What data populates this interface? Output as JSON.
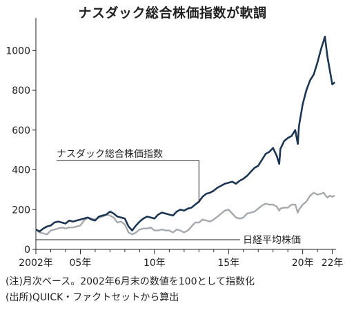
{
  "chart_data": {
    "type": "line",
    "title": "ナスダック総合株価指数が軟調",
    "xlabel": "",
    "ylabel": "",
    "xlim": [
      2002.5,
      2022.75
    ],
    "ylim": [
      0,
      1150
    ],
    "y_ticks": [
      0,
      200,
      400,
      600,
      800,
      1000
    ],
    "x_tick_labels": [
      {
        "year": 2002,
        "label": "2002年"
      },
      {
        "year": 2005,
        "label": "05年"
      },
      {
        "year": 2010,
        "label": "10年"
      },
      {
        "year": 2015,
        "label": "15年"
      },
      {
        "year": 2020,
        "label": "20年"
      },
      {
        "year": 2022,
        "label": "22年"
      }
    ],
    "grid": false,
    "series": [
      {
        "name": "ナスダック総合株価指数",
        "color": "#1c3552",
        "x": [
          2002.5,
          2002.75,
          2003.0,
          2003.25,
          2003.5,
          2003.75,
          2004.0,
          2004.25,
          2004.5,
          2004.75,
          2005.0,
          2005.25,
          2005.5,
          2005.75,
          2006.0,
          2006.25,
          2006.5,
          2006.75,
          2007.0,
          2007.25,
          2007.5,
          2007.75,
          2008.0,
          2008.25,
          2008.5,
          2008.75,
          2009.0,
          2009.25,
          2009.5,
          2009.75,
          2010.0,
          2010.25,
          2010.5,
          2010.75,
          2011.0,
          2011.25,
          2011.5,
          2011.75,
          2012.0,
          2012.25,
          2012.5,
          2012.75,
          2013.0,
          2013.25,
          2013.5,
          2013.75,
          2014.0,
          2014.25,
          2014.5,
          2014.75,
          2015.0,
          2015.25,
          2015.5,
          2015.75,
          2016.0,
          2016.25,
          2016.5,
          2016.75,
          2017.0,
          2017.25,
          2017.5,
          2017.75,
          2018.0,
          2018.25,
          2018.5,
          2018.75,
          2018.92,
          2019.0,
          2019.25,
          2019.5,
          2019.75,
          2020.0,
          2020.17,
          2020.25,
          2020.5,
          2020.75,
          2021.0,
          2021.25,
          2021.5,
          2021.75,
          2021.92,
          2022.0,
          2022.17,
          2022.33,
          2022.5,
          2022.67
        ],
        "values": [
          100,
          90,
          105,
          115,
          120,
          135,
          140,
          135,
          130,
          145,
          140,
          145,
          150,
          155,
          160,
          150,
          145,
          165,
          170,
          175,
          190,
          180,
          165,
          160,
          155,
          115,
          95,
          120,
          140,
          155,
          165,
          160,
          155,
          175,
          185,
          180,
          175,
          170,
          190,
          200,
          195,
          205,
          210,
          225,
          240,
          265,
          280,
          285,
          295,
          310,
          320,
          330,
          335,
          340,
          330,
          345,
          355,
          370,
          390,
          410,
          420,
          450,
          480,
          490,
          510,
          470,
          430,
          505,
          545,
          560,
          570,
          600,
          530,
          620,
          730,
          800,
          850,
          880,
          940,
          1010,
          1050,
          1070,
          970,
          900,
          830,
          840
        ]
      },
      {
        "name": "日経平均株価",
        "color": "#a5a9ad",
        "x": [
          2002.5,
          2002.75,
          2003.0,
          2003.25,
          2003.5,
          2003.75,
          2004.0,
          2004.25,
          2004.5,
          2004.75,
          2005.0,
          2005.25,
          2005.5,
          2005.75,
          2006.0,
          2006.25,
          2006.5,
          2006.75,
          2007.0,
          2007.25,
          2007.5,
          2007.75,
          2008.0,
          2008.25,
          2008.5,
          2008.75,
          2009.0,
          2009.25,
          2009.5,
          2009.75,
          2010.0,
          2010.25,
          2010.5,
          2010.75,
          2011.0,
          2011.25,
          2011.5,
          2011.75,
          2012.0,
          2012.25,
          2012.5,
          2012.75,
          2013.0,
          2013.25,
          2013.5,
          2013.75,
          2014.0,
          2014.25,
          2014.5,
          2014.75,
          2015.0,
          2015.25,
          2015.5,
          2015.75,
          2016.0,
          2016.25,
          2016.5,
          2016.75,
          2017.0,
          2017.25,
          2017.5,
          2017.75,
          2018.0,
          2018.25,
          2018.5,
          2018.75,
          2018.92,
          2019.0,
          2019.25,
          2019.5,
          2019.75,
          2020.0,
          2020.17,
          2020.25,
          2020.5,
          2020.75,
          2021.0,
          2021.25,
          2021.5,
          2021.75,
          2021.92,
          2022.0,
          2022.17,
          2022.33,
          2022.5,
          2022.67
        ],
        "values": [
          100,
          85,
          80,
          75,
          95,
          100,
          105,
          110,
          105,
          110,
          110,
          115,
          120,
          145,
          160,
          155,
          150,
          160,
          165,
          175,
          170,
          160,
          135,
          140,
          125,
          85,
          75,
          85,
          100,
          105,
          105,
          110,
          95,
          95,
          100,
          95,
          95,
          85,
          100,
          95,
          85,
          95,
          115,
          135,
          135,
          150,
          145,
          140,
          150,
          165,
          180,
          195,
          200,
          180,
          160,
          155,
          160,
          180,
          185,
          190,
          205,
          220,
          230,
          225,
          225,
          215,
          195,
          205,
          210,
          210,
          225,
          225,
          185,
          200,
          225,
          240,
          270,
          285,
          275,
          280,
          285,
          275,
          260,
          270,
          265,
          270
        ]
      }
    ]
  },
  "annotations": {
    "nasdaq_label": "ナスダック総合株価指数",
    "nikkei_label": "日経平均株価"
  },
  "notes": {
    "line1": "(注)月次ベース。2002年6月末の数値を100として指数化",
    "line2": "(出所)QUICK・ファクトセットから算出"
  }
}
